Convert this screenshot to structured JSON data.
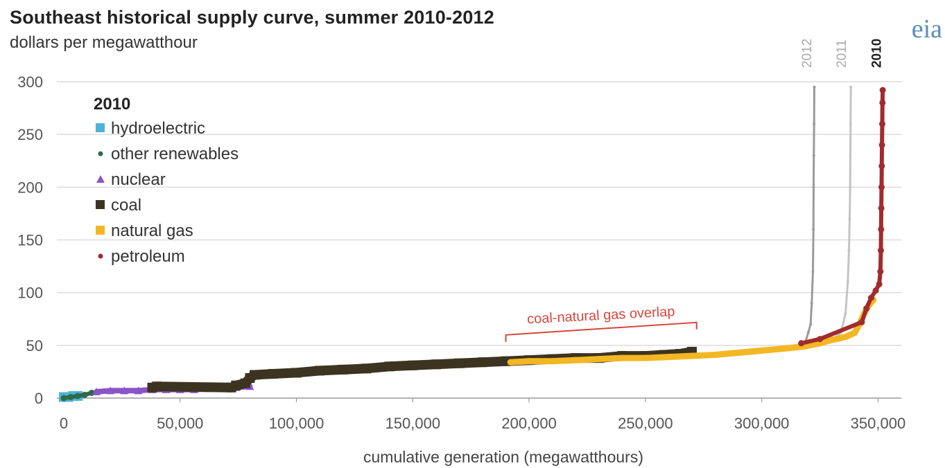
{
  "header": {
    "title": "Southeast historical supply curve, summer 2010-2012",
    "subtitle": "dollars per megawatthour",
    "logo": "eia"
  },
  "chart_data": {
    "type": "scatter",
    "title": "Southeast historical supply curve, summer 2010-2012",
    "subtitle": "dollars per megawatthour",
    "xlabel": "cumulative generation  (megawatthours)",
    "ylabel": "",
    "xlim": [
      0,
      360000
    ],
    "ylim": [
      0,
      300
    ],
    "xticks": [
      0,
      50000,
      100000,
      150000,
      200000,
      250000,
      300000,
      350000
    ],
    "xtick_labels": [
      "0",
      "50,000",
      "100,000",
      "150,000",
      "200,000",
      "250,000",
      "300,000",
      "350,000"
    ],
    "yticks": [
      0,
      50,
      100,
      150,
      200,
      250,
      300
    ],
    "ytick_labels": [
      "0",
      "50",
      "100",
      "150",
      "200",
      "250",
      "300"
    ],
    "grid": "horizontal",
    "legend": {
      "title": "2010",
      "placement": "top-left",
      "entries": [
        {
          "label": "hydroelectric",
          "color": "#4fb3d9",
          "marker": "square"
        },
        {
          "label": "other renewables",
          "color": "#2e6b4a",
          "marker": "dot"
        },
        {
          "label": "nuclear",
          "color": "#8a55c8",
          "marker": "triangle"
        },
        {
          "label": "coal",
          "color": "#3d3321",
          "marker": "square"
        },
        {
          "label": "natural gas",
          "color": "#f3b724",
          "marker": "square"
        },
        {
          "label": "petroleum",
          "color": "#a22b2e",
          "marker": "dot"
        }
      ]
    },
    "year_labels": [
      {
        "label": "2012",
        "x": 320000,
        "bold": false
      },
      {
        "label": "2011",
        "x": 335000,
        "bold": false
      },
      {
        "label": "2010",
        "x": 350000,
        "bold": true
      }
    ],
    "annotation": {
      "text": "coal-natural gas overlap",
      "x_start": 190000,
      "x_end": 272000,
      "y": 52
    },
    "series": [
      {
        "name": "hydroelectric",
        "color": "#4fb3d9",
        "points": [
          [
            0,
            1
          ],
          [
            2000,
            1
          ],
          [
            4000,
            2
          ],
          [
            6000,
            2
          ]
        ]
      },
      {
        "name": "other renewables",
        "color": "#2e6b4a",
        "points": [
          [
            0,
            0
          ],
          [
            3000,
            1
          ],
          [
            6000,
            2
          ],
          [
            9000,
            3
          ],
          [
            12000,
            5
          ]
        ]
      },
      {
        "name": "nuclear",
        "color": "#8a55c8",
        "points": [
          [
            14000,
            6
          ],
          [
            20000,
            7
          ],
          [
            26000,
            7
          ],
          [
            32000,
            7
          ],
          [
            38000,
            8
          ],
          [
            44000,
            8
          ],
          [
            50000,
            8
          ],
          [
            56000,
            8
          ],
          [
            62000,
            9
          ],
          [
            68000,
            9
          ],
          [
            74000,
            10
          ],
          [
            80000,
            11
          ]
        ]
      },
      {
        "name": "coal",
        "color": "#3d3321",
        "points": [
          [
            38000,
            10
          ],
          [
            40000,
            11
          ],
          [
            72000,
            10
          ],
          [
            74000,
            12
          ],
          [
            78000,
            14
          ],
          [
            80000,
            19
          ],
          [
            82000,
            22
          ],
          [
            90000,
            23
          ],
          [
            100000,
            24
          ],
          [
            110000,
            26
          ],
          [
            120000,
            27
          ],
          [
            130000,
            28
          ],
          [
            140000,
            30
          ],
          [
            150000,
            31
          ],
          [
            160000,
            32
          ],
          [
            170000,
            33
          ],
          [
            180000,
            34
          ],
          [
            190000,
            35
          ],
          [
            200000,
            36
          ],
          [
            210000,
            37
          ],
          [
            220000,
            38
          ],
          [
            230000,
            38
          ],
          [
            240000,
            40
          ],
          [
            250000,
            40
          ],
          [
            258000,
            41
          ],
          [
            265000,
            42
          ],
          [
            270000,
            44
          ]
        ]
      },
      {
        "name": "natural gas",
        "color": "#f3b724",
        "points": [
          [
            192000,
            34
          ],
          [
            200000,
            35
          ],
          [
            210000,
            35
          ],
          [
            220000,
            36
          ],
          [
            230000,
            37
          ],
          [
            240000,
            38
          ],
          [
            250000,
            38
          ],
          [
            260000,
            39
          ],
          [
            270000,
            40
          ],
          [
            280000,
            41
          ],
          [
            290000,
            43
          ],
          [
            300000,
            45
          ],
          [
            310000,
            47
          ],
          [
            318000,
            49
          ],
          [
            325000,
            52
          ],
          [
            330000,
            55
          ],
          [
            336000,
            58
          ],
          [
            340000,
            62
          ],
          [
            342000,
            70
          ],
          [
            344000,
            80
          ],
          [
            346000,
            88
          ],
          [
            348000,
            93
          ]
        ]
      },
      {
        "name": "petroleum",
        "color": "#a22b2e",
        "points": [
          [
            317000,
            52
          ],
          [
            325000,
            56
          ],
          [
            343000,
            72
          ],
          [
            345000,
            85
          ],
          [
            347000,
            95
          ],
          [
            349000,
            102
          ],
          [
            350500,
            108
          ],
          [
            351000,
            120
          ],
          [
            351200,
            140
          ],
          [
            351300,
            160
          ],
          [
            351400,
            180
          ],
          [
            351500,
            200
          ],
          [
            351600,
            220
          ],
          [
            351700,
            240
          ],
          [
            351800,
            260
          ],
          [
            351900,
            280
          ],
          [
            352000,
            292
          ]
        ]
      },
      {
        "name": "2012",
        "color": "#9a9a9a",
        "points": [
          [
            318000,
            48
          ],
          [
            320000,
            62
          ],
          [
            321000,
            70
          ],
          [
            321500,
            90
          ],
          [
            322000,
            120
          ],
          [
            322200,
            160
          ],
          [
            322300,
            200
          ],
          [
            322400,
            230
          ],
          [
            322500,
            260
          ],
          [
            322600,
            295
          ]
        ]
      },
      {
        "name": "2011",
        "color": "#c4c4c4",
        "points": [
          [
            330000,
            55
          ],
          [
            334000,
            62
          ],
          [
            336000,
            80
          ],
          [
            337000,
            110
          ],
          [
            337500,
            140
          ],
          [
            337800,
            170
          ],
          [
            338000,
            200
          ],
          [
            338100,
            230
          ],
          [
            338200,
            260
          ],
          [
            338300,
            295
          ]
        ]
      }
    ]
  }
}
